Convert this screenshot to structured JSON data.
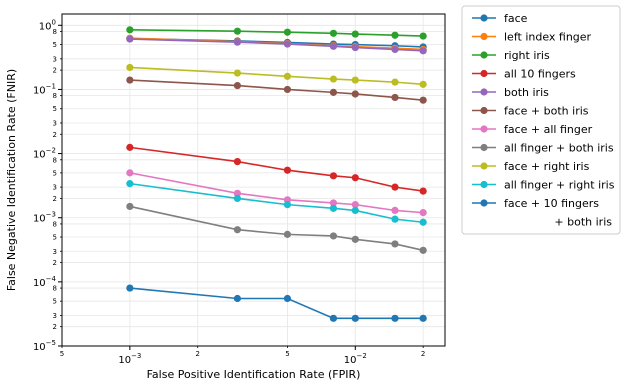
{
  "chart_data": {
    "type": "line",
    "xlabel": "False Positive Identification Rate (FPIR)",
    "ylabel": "False Negative Identification Rate (FNIR)",
    "xscale": "log",
    "yscale": "log",
    "xlim": [
      0.0005,
      0.025
    ],
    "ylim": [
      1e-05,
      1.5
    ],
    "grid": true,
    "legend_position": "outside-right",
    "x_ticks": {
      "major": [
        {
          "value": 0.001,
          "label": "10",
          "exponent": "−3"
        },
        {
          "value": 0.01,
          "label": "10",
          "exponent": "−2"
        }
      ],
      "minor": [
        {
          "value": 0.0005,
          "label": "5"
        },
        {
          "value": 0.002,
          "label": "2"
        },
        {
          "value": 0.005,
          "label": "5"
        },
        {
          "value": 0.02,
          "label": "2"
        }
      ]
    },
    "y_ticks": {
      "major": [
        {
          "value": 1e-05,
          "label": "10",
          "exponent": "−5"
        },
        {
          "value": 0.0001,
          "label": "10",
          "exponent": "−4"
        },
        {
          "value": 0.001,
          "label": "10",
          "exponent": "−3"
        },
        {
          "value": 0.01,
          "label": "10",
          "exponent": "−2"
        },
        {
          "value": 0.1,
          "label": "10",
          "exponent": "−1"
        },
        {
          "value": 1,
          "label": "10",
          "exponent": "0"
        }
      ],
      "minor": [
        {
          "value": 2e-05,
          "label": "2"
        },
        {
          "value": 3e-05,
          "label": "3"
        },
        {
          "value": 5e-05,
          "label": "5"
        },
        {
          "value": 8e-05,
          "label": "8"
        },
        {
          "value": 0.0002,
          "label": "2"
        },
        {
          "value": 0.0003,
          "label": "3"
        },
        {
          "value": 0.0005,
          "label": "5"
        },
        {
          "value": 0.0008,
          "label": "8"
        },
        {
          "value": 0.002,
          "label": "2"
        },
        {
          "value": 0.003,
          "label": "3"
        },
        {
          "value": 0.005,
          "label": "5"
        },
        {
          "value": 0.008,
          "label": "8"
        },
        {
          "value": 0.02,
          "label": "2"
        },
        {
          "value": 0.03,
          "label": "3"
        },
        {
          "value": 0.05,
          "label": "5"
        },
        {
          "value": 0.08,
          "label": "8"
        },
        {
          "value": 0.2,
          "label": "2"
        },
        {
          "value": 0.3,
          "label": "3"
        },
        {
          "value": 0.5,
          "label": "5"
        },
        {
          "value": 0.8,
          "label": "8"
        }
      ]
    },
    "x": [
      0.001,
      0.003,
      0.005,
      0.008,
      0.01,
      0.015,
      0.02
    ],
    "series": [
      {
        "name": "face",
        "color": "#1f77b4",
        "values": [
          0.62,
          0.57,
          0.54,
          0.51,
          0.5,
          0.48,
          0.46
        ]
      },
      {
        "name": "left index finger",
        "color": "#ff7f0e",
        "values": [
          0.63,
          0.555,
          0.52,
          0.48,
          0.465,
          0.44,
          0.42
        ]
      },
      {
        "name": "right iris",
        "color": "#2ca02c",
        "values": [
          0.85,
          0.81,
          0.78,
          0.75,
          0.73,
          0.7,
          0.68
        ]
      },
      {
        "name": "all 10 fingers",
        "color": "#d62728",
        "values": [
          0.0125,
          0.0075,
          0.0055,
          0.0045,
          0.0042,
          0.003,
          0.0026
        ]
      },
      {
        "name": "both iris",
        "color": "#9467bd",
        "values": [
          0.61,
          0.545,
          0.51,
          0.47,
          0.45,
          0.42,
          0.4
        ]
      },
      {
        "name": "face + both iris",
        "color": "#8c564b",
        "values": [
          0.14,
          0.115,
          0.1,
          0.09,
          0.085,
          0.075,
          0.068
        ]
      },
      {
        "name": "face + all finger",
        "color": "#e377c2",
        "values": [
          0.005,
          0.0024,
          0.0019,
          0.0017,
          0.0016,
          0.0013,
          0.0012
        ]
      },
      {
        "name": "all finger + both iris",
        "color": "#7f7f7f",
        "values": [
          0.0015,
          0.00065,
          0.00055,
          0.00052,
          0.00046,
          0.00039,
          0.00031
        ]
      },
      {
        "name": "face + right iris",
        "color": "#bcbd22",
        "values": [
          0.22,
          0.18,
          0.16,
          0.145,
          0.14,
          0.13,
          0.12
        ]
      },
      {
        "name": "all finger + right iris",
        "color": "#17becf",
        "values": [
          0.0034,
          0.002,
          0.0016,
          0.0014,
          0.0013,
          0.00095,
          0.00085
        ]
      },
      {
        "name": "face + 10 fingers\n+ both iris",
        "color": "#1f77b4",
        "values": [
          8e-05,
          5.5e-05,
          5.5e-05,
          2.7e-05,
          2.7e-05,
          2.7e-05,
          2.7e-05
        ]
      }
    ]
  }
}
